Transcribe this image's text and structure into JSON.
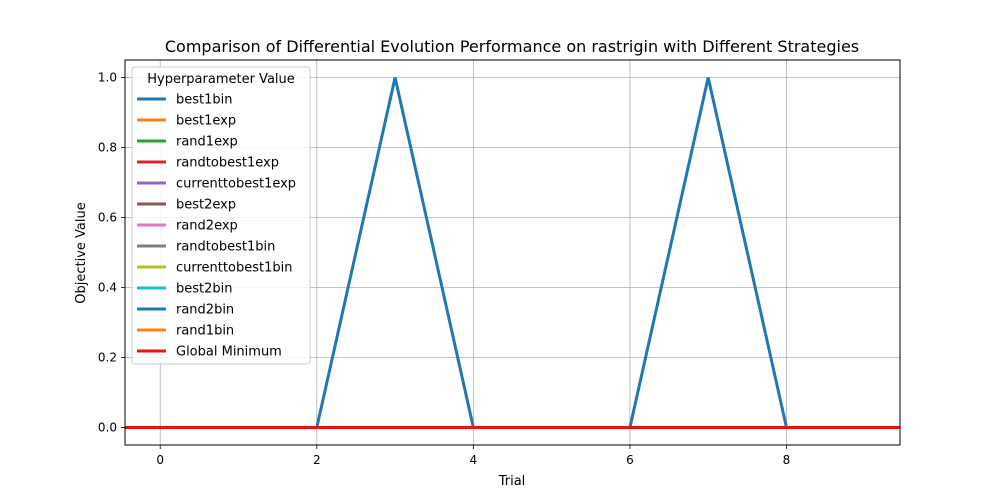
{
  "chart_data": {
    "type": "line",
    "title": "Comparison of Differential Evolution Performance on rastrigin with Different Strategies",
    "xlabel": "Trial",
    "ylabel": "Objective Value",
    "xlim": [
      -0.45,
      9.45
    ],
    "ylim": [
      -0.05,
      1.05
    ],
    "x_ticks": [
      "0",
      "2",
      "4",
      "6",
      "8"
    ],
    "y_ticks": [
      "0.0",
      "0.2",
      "0.4",
      "0.6",
      "0.8",
      "1.0"
    ],
    "grid": true,
    "legend_title": "Hyperparameter Value",
    "legend_position": "top-left",
    "x": [
      0,
      1,
      2,
      3,
      4,
      5,
      6,
      7,
      8,
      9
    ],
    "series": [
      {
        "name": "best1bin",
        "color": "#1f77b4",
        "values": [
          0,
          0,
          0,
          0,
          0,
          0,
          0,
          0,
          0,
          0
        ]
      },
      {
        "name": "best1exp",
        "color": "#ff7f0e",
        "values": [
          0,
          0,
          0,
          0,
          0,
          0,
          0,
          0,
          0,
          0
        ]
      },
      {
        "name": "rand1exp",
        "color": "#2ca02c",
        "values": [
          0,
          0,
          0,
          0,
          0,
          0,
          0,
          0,
          0,
          0
        ]
      },
      {
        "name": "randtobest1exp",
        "color": "#d62728",
        "values": [
          0,
          0,
          0,
          0,
          0,
          0,
          0,
          0,
          0,
          0
        ]
      },
      {
        "name": "currenttobest1exp",
        "color": "#9467bd",
        "values": [
          0,
          0,
          0,
          0,
          0,
          0,
          0,
          0,
          0,
          0
        ]
      },
      {
        "name": "best2exp",
        "color": "#8c564b",
        "values": [
          0,
          0,
          0,
          0,
          0,
          0,
          0,
          0,
          0,
          0
        ]
      },
      {
        "name": "rand2exp",
        "color": "#e377c2",
        "values": [
          0,
          0,
          0,
          0,
          0,
          0,
          0,
          0,
          0,
          0
        ]
      },
      {
        "name": "randtobest1bin",
        "color": "#7f7f7f",
        "values": [
          0,
          0,
          0,
          0,
          0,
          0,
          0,
          0,
          0,
          0
        ]
      },
      {
        "name": "currenttobest1bin",
        "color": "#bcbd22",
        "values": [
          0,
          0,
          0,
          0,
          0,
          0,
          0,
          0,
          0,
          0
        ]
      },
      {
        "name": "best2bin",
        "color": "#17becf",
        "values": [
          0,
          0,
          0,
          0,
          0,
          0,
          0,
          0,
          0,
          0
        ]
      },
      {
        "name": "rand2bin",
        "color": "#1f77b4",
        "values": [
          0,
          0,
          0,
          1,
          0,
          0,
          0,
          1,
          0,
          0
        ]
      },
      {
        "name": "rand1bin",
        "color": "#ff7f0e",
        "values": [
          0,
          0,
          0,
          0,
          0,
          0,
          0,
          0,
          0,
          0
        ]
      }
    ],
    "reference_line": {
      "name": "Global Minimum",
      "color": "#ee1111",
      "y": 0
    }
  }
}
